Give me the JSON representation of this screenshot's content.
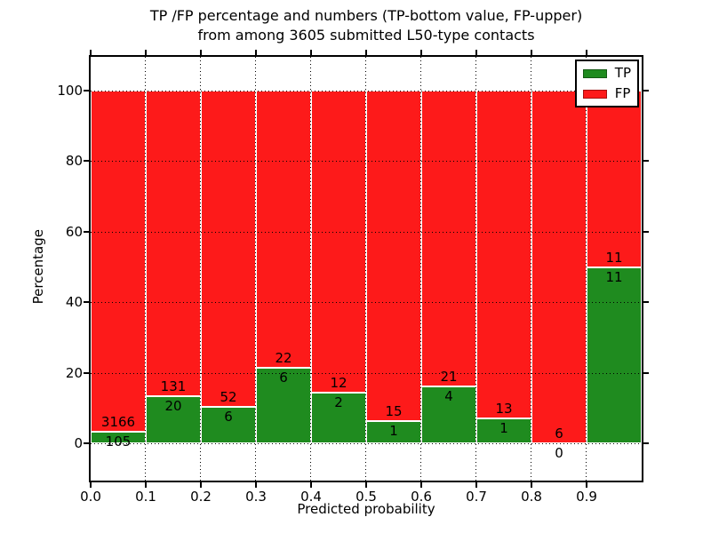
{
  "title": {
    "line1": "TP /FP percentage and numbers (TP-bottom value, FP-upper)",
    "line2": "from among 3605 submitted L50-type contacts"
  },
  "chart_data": {
    "type": "bar",
    "stacked": true,
    "normalized_to_percent": true,
    "title": "TP /FP percentage and numbers (TP-bottom value, FP-upper) from among 3605 submitted L50-type contacts",
    "xlabel": "Predicted probability",
    "ylabel": "Percentage",
    "total_submitted": 3605,
    "bin_width": 0.1,
    "bin_starts": [
      0.0,
      0.1,
      0.2,
      0.3,
      0.4,
      0.5,
      0.6,
      0.7,
      0.8,
      0.9
    ],
    "xticks": [
      "0.0",
      "0.1",
      "0.2",
      "0.3",
      "0.4",
      "0.5",
      "0.6",
      "0.7",
      "0.8",
      "0.9"
    ],
    "yticks": [
      0,
      20,
      40,
      60,
      80,
      100
    ],
    "xlim": [
      0.0,
      1.0
    ],
    "ylim": [
      -10.6,
      109.6
    ],
    "grid": "dotted",
    "legend_position": "upper right",
    "series": [
      {
        "name": "TP",
        "color": "#1f8b1f",
        "counts": [
          105,
          20,
          6,
          6,
          2,
          1,
          4,
          1,
          0,
          11
        ]
      },
      {
        "name": "FP",
        "color": "#fd1a1a",
        "counts": [
          3166,
          131,
          52,
          22,
          12,
          15,
          21,
          13,
          6,
          11
        ]
      }
    ],
    "tp_percent_of_bin": [
      3.21,
      13.25,
      10.34,
      21.43,
      14.29,
      6.25,
      16.0,
      7.14,
      0.0,
      50.0
    ],
    "bar_edge_color": "#ffffff"
  }
}
